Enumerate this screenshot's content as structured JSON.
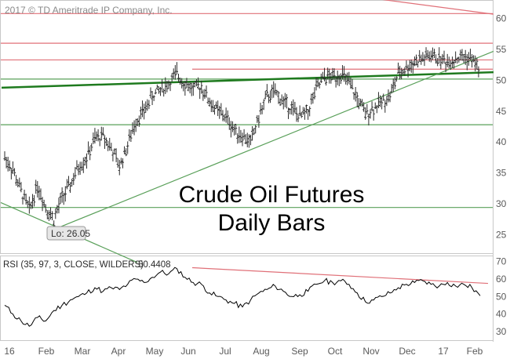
{
  "copyright": "2017 © TD Ameritrade IP Company, Inc.",
  "title_line1": "Crude Oil Futures",
  "title_line2": "Daily Bars",
  "low_annotation": "Lo: 26.05",
  "rsi_label": "RSI (35, 97, 3, CLOSE, WILDERS)",
  "rsi_value": "50.4408",
  "colors": {
    "price_bars": "#2b2b2b",
    "resistance_lines": "#e07078",
    "support_lines": "#5aa05a",
    "long_trendline": "#1e7a1e",
    "rsi_line": "#000000",
    "rsi_divergence_line": "#e07078"
  },
  "chart_data": [
    {
      "type": "line",
      "subtype": "ohlc-bars",
      "x_categories": [
        "16",
        "Feb",
        "Mar",
        "Apr",
        "May",
        "Jun",
        "Jul",
        "Aug",
        "Sep",
        "Oct",
        "Nov",
        "Dec",
        "17",
        "Feb"
      ],
      "y_ticks": [
        25,
        30,
        35,
        40,
        45,
        50,
        55,
        60
      ],
      "ylim": [
        22,
        63
      ],
      "y_axis_side": "right",
      "annotations": {
        "low": 26.05
      },
      "horizontal_levels": [
        {
          "value": 60.8,
          "color": "red"
        },
        {
          "value": 56.0,
          "color": "red"
        },
        {
          "value": 53.3,
          "color": "red"
        },
        {
          "value": 51.8,
          "color": "red"
        },
        {
          "value": 50.2,
          "color": "green"
        },
        {
          "value": 42.8,
          "color": "green"
        },
        {
          "value": 29.4,
          "color": "green"
        }
      ],
      "trendlines": [
        {
          "from": [
            "15-Dec",
            48.8
          ],
          "to": [
            "Feb-17",
            51.3
          ],
          "color": "dark-green"
        },
        {
          "from": [
            "Feb",
            25.7
          ],
          "to": [
            "Feb-17",
            54.7
          ],
          "color": "green"
        },
        {
          "from": [
            "Jan",
            30.2
          ],
          "to": [
            "Jul",
            20.5
          ],
          "color": "green"
        },
        {
          "from": [
            "Dec",
            64.0
          ],
          "to": [
            "Feb-17",
            60.7
          ],
          "color": "red"
        }
      ],
      "series": [
        {
          "points": [
            [
              "16",
              37.5
            ],
            [
              "16",
              35.5
            ],
            [
              "16",
              32.0
            ],
            [
              "16",
              29.0
            ],
            [
              "Feb",
              33.0
            ],
            [
              "Feb",
              29.5
            ],
            [
              "Feb",
              27.5
            ],
            [
              "Feb",
              31.0
            ],
            [
              "Feb",
              33.0
            ],
            [
              "Mar",
              36.0
            ],
            [
              "Mar",
              37.5
            ],
            [
              "Mar",
              40.5
            ],
            [
              "Apr",
              41.0
            ],
            [
              "Apr",
              39.0
            ],
            [
              "Apr",
              36.0
            ],
            [
              "Apr",
              39.5
            ],
            [
              "Apr",
              43.5
            ],
            [
              "May",
              45.0
            ],
            [
              "May",
              47.5
            ],
            [
              "May",
              48.5
            ],
            [
              "May",
              49.5
            ],
            [
              "Jun",
              51.0
            ],
            [
              "Jun",
              49.5
            ],
            [
              "Jun",
              48.5
            ],
            [
              "Jun",
              49.0
            ],
            [
              "Jul",
              46.5
            ],
            [
              "Jul",
              45.0
            ],
            [
              "Jul",
              44.0
            ],
            [
              "Jul",
              42.0
            ],
            [
              "Aug",
              41.0
            ],
            [
              "Aug",
              40.0
            ],
            [
              "Aug",
              44.0
            ],
            [
              "Aug",
              47.5
            ],
            [
              "Aug",
              48.0
            ],
            [
              "Sep",
              46.5
            ],
            [
              "Sep",
              45.5
            ],
            [
              "Sep",
              44.0
            ],
            [
              "Sep",
              45.0
            ],
            [
              "Oct",
              48.5
            ],
            [
              "Oct",
              50.5
            ],
            [
              "Oct",
              50.5
            ],
            [
              "Oct",
              51.0
            ],
            [
              "Oct",
              49.5
            ],
            [
              "Nov",
              47.0
            ],
            [
              "Nov",
              44.5
            ],
            [
              "Nov",
              45.5
            ],
            [
              "Nov",
              46.5
            ],
            [
              "Nov",
              47.5
            ],
            [
              "Dec",
              51.0
            ],
            [
              "Dec",
              52.0
            ],
            [
              "Dec",
              53.0
            ],
            [
              "Dec",
              53.5
            ],
            [
              "17",
              54.0
            ],
            [
              "17",
              53.5
            ],
            [
              "17",
              53.0
            ],
            [
              "17",
              53.5
            ],
            [
              "Feb",
              53.8
            ],
            [
              "Feb",
              53.4
            ],
            [
              "Feb",
              51.8
            ]
          ]
        }
      ]
    },
    {
      "type": "line",
      "title": "RSI (35, 97, 3, CLOSE, WILDERS)",
      "x_categories": [
        "16",
        "Feb",
        "Mar",
        "Apr",
        "May",
        "Jun",
        "Jul",
        "Aug",
        "Sep",
        "Oct",
        "Nov",
        "Dec",
        "17",
        "Feb"
      ],
      "y_ticks": [
        30,
        40,
        50,
        60,
        70
      ],
      "ylim": [
        25,
        73
      ],
      "y_axis_side": "right",
      "last_value": 50.4408,
      "trendlines": [
        {
          "from": [
            "Jun",
            66.5
          ],
          "to": [
            "Feb-17",
            57.5
          ],
          "color": "red"
        }
      ],
      "series": [
        {
          "points": [
            [
              "16",
              45
            ],
            [
              "16",
              40
            ],
            [
              "16",
              36
            ],
            [
              "16",
              33
            ],
            [
              "Feb",
              38
            ],
            [
              "Feb",
              36
            ],
            [
              "Feb",
              42
            ],
            [
              "Feb",
              45
            ],
            [
              "Feb",
              48
            ],
            [
              "Mar",
              50
            ],
            [
              "Mar",
              52
            ],
            [
              "Mar",
              55
            ],
            [
              "Apr",
              53
            ],
            [
              "Apr",
              55
            ],
            [
              "Apr",
              54
            ],
            [
              "Apr",
              57
            ],
            [
              "Apr",
              60
            ],
            [
              "May",
              58
            ],
            [
              "May",
              61
            ],
            [
              "May",
              64
            ],
            [
              "May",
              63
            ],
            [
              "Jun",
              66
            ],
            [
              "Jun",
              61
            ],
            [
              "Jun",
              58
            ],
            [
              "Jun",
              57
            ],
            [
              "Jul",
              52
            ],
            [
              "Jul",
              50
            ],
            [
              "Jul",
              48
            ],
            [
              "Jul",
              46
            ],
            [
              "Aug",
              44
            ],
            [
              "Aug",
              48
            ],
            [
              "Aug",
              52
            ],
            [
              "Aug",
              54
            ],
            [
              "Aug",
              56
            ],
            [
              "Sep",
              53
            ],
            [
              "Sep",
              50
            ],
            [
              "Sep",
              51
            ],
            [
              "Sep",
              53
            ],
            [
              "Oct",
              57
            ],
            [
              "Oct",
              59
            ],
            [
              "Oct",
              58
            ],
            [
              "Oct",
              59
            ],
            [
              "Oct",
              57
            ],
            [
              "Nov",
              52
            ],
            [
              "Nov",
              47
            ],
            [
              "Nov",
              48
            ],
            [
              "Nov",
              50
            ],
            [
              "Nov",
              52
            ],
            [
              "Dec",
              55
            ],
            [
              "Dec",
              57
            ],
            [
              "Dec",
              58
            ],
            [
              "Dec",
              59
            ],
            [
              "17",
              57
            ],
            [
              "17",
              56
            ],
            [
              "17",
              58
            ],
            [
              "17",
              56
            ],
            [
              "Feb",
              57
            ],
            [
              "Feb",
              55
            ],
            [
              "Feb",
              50.44
            ]
          ]
        }
      ]
    }
  ]
}
